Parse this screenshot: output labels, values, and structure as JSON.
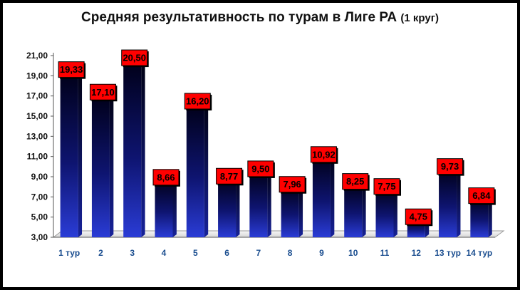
{
  "chart_data": {
    "type": "bar",
    "title": "Средняя результативность по турам в Лиге РА",
    "subtitle": "(1 круг)",
    "categories": [
      "1 тур",
      "2",
      "3",
      "4",
      "5",
      "6",
      "7",
      "8",
      "9",
      "10",
      "11",
      "12",
      "13 тур",
      "14 тур"
    ],
    "values": [
      19.33,
      17.1,
      20.5,
      8.66,
      16.2,
      8.77,
      9.5,
      7.96,
      10.92,
      8.25,
      7.75,
      4.75,
      9.73,
      6.84
    ],
    "data_labels": [
      "19,33",
      "17,10",
      "20,50",
      "8,66",
      "16,20",
      "8,77",
      "9,50",
      "7,96",
      "10,92",
      "8,25",
      "7,75",
      "4,75",
      "9,73",
      "6,84"
    ],
    "ylim": [
      3,
      21
    ],
    "yticks": [
      "3,00",
      "5,00",
      "7,00",
      "9,00",
      "11,00",
      "13,00",
      "15,00",
      "17,00",
      "19,00",
      "21,00"
    ],
    "ytick_values": [
      3,
      5,
      7,
      9,
      11,
      13,
      15,
      17,
      19,
      21
    ],
    "grid": false,
    "legend": "none",
    "colors": {
      "bar_top": "#000018",
      "bar_bottom": "#2a3cd6",
      "label_bg": "#ff0000",
      "category_text": "#1a4d8f"
    }
  }
}
